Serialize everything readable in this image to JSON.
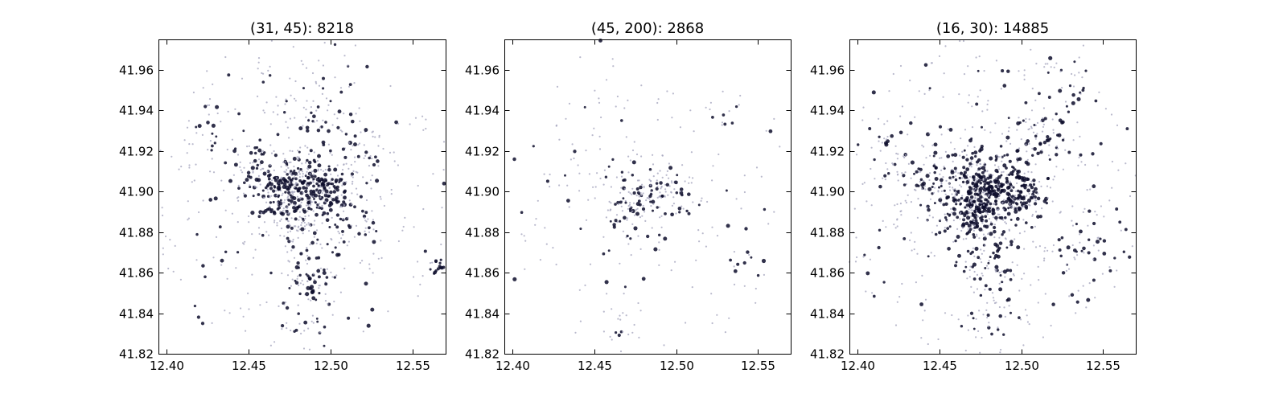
{
  "chart_data": [
    {
      "type": "scatter",
      "title": "(31, 45): 8218",
      "xlim": [
        12.395,
        12.57
      ],
      "ylim": [
        41.82,
        41.975
      ],
      "xticks": [
        "12.40",
        "12.45",
        "12.50",
        "12.55"
      ],
      "xtick_values": [
        12.4,
        12.45,
        12.5,
        12.55
      ],
      "yticks": [
        "41.82",
        "41.84",
        "41.86",
        "41.88",
        "41.90",
        "41.92",
        "41.94",
        "41.96"
      ],
      "ytick_values": [
        41.82,
        41.84,
        41.86,
        41.88,
        41.9,
        41.92,
        41.94,
        41.96
      ],
      "grid": false,
      "clusters": [
        {
          "center": [
            12.48,
            41.902
          ],
          "sx": 0.012,
          "sy": 0.008,
          "n": 260,
          "dark": 0.6
        },
        {
          "center": [
            12.5,
            41.9
          ],
          "sx": 0.006,
          "sy": 0.005,
          "n": 70,
          "dark": 0.7
        },
        {
          "center": [
            12.47,
            41.89
          ],
          "sx": 0.006,
          "sy": 0.006,
          "n": 50,
          "dark": 0.6
        },
        {
          "center": [
            12.485,
            41.87
          ],
          "sx": 0.01,
          "sy": 0.014,
          "n": 90,
          "dark": 0.4
        },
        {
          "center": [
            12.49,
            41.855
          ],
          "sx": 0.006,
          "sy": 0.005,
          "n": 30,
          "dark": 0.7
        },
        {
          "center": [
            12.455,
            41.91
          ],
          "sx": 0.008,
          "sy": 0.008,
          "n": 50,
          "dark": 0.5
        },
        {
          "center": [
            12.52,
            41.92
          ],
          "sx": 0.01,
          "sy": 0.01,
          "n": 40,
          "dark": 0.4
        },
        {
          "center": [
            12.48,
            41.945
          ],
          "sx": 0.012,
          "sy": 0.01,
          "n": 45,
          "dark": 0.3
        },
        {
          "center": [
            12.51,
            41.88
          ],
          "sx": 0.01,
          "sy": 0.008,
          "n": 45,
          "dark": 0.5
        },
        {
          "center": [
            12.565,
            41.863
          ],
          "sx": 0.004,
          "sy": 0.003,
          "n": 14,
          "dark": 0.8
        },
        {
          "center": [
            12.48,
            41.835
          ],
          "sx": 0.006,
          "sy": 0.004,
          "n": 14,
          "dark": 0.6
        },
        {
          "center": [
            12.5,
            41.94
          ],
          "sx": 0.008,
          "sy": 0.01,
          "n": 20,
          "dark": 0.6
        },
        {
          "center": [
            12.425,
            41.93
          ],
          "sx": 0.006,
          "sy": 0.006,
          "n": 16,
          "dark": 0.6
        }
      ],
      "background_points": 360
    },
    {
      "type": "scatter",
      "title": "(45, 200): 2868",
      "xlim": [
        12.395,
        12.57
      ],
      "ylim": [
        41.82,
        41.975
      ],
      "xticks": [
        "12.40",
        "12.45",
        "12.50",
        "12.55"
      ],
      "xtick_values": [
        12.4,
        12.45,
        12.5,
        12.55
      ],
      "yticks": [
        "41.82",
        "41.84",
        "41.86",
        "41.88",
        "41.90",
        "41.92",
        "41.94",
        "41.96"
      ],
      "ytick_values": [
        41.82,
        41.84,
        41.86,
        41.88,
        41.9,
        41.92,
        41.94,
        41.96
      ],
      "grid": false,
      "clusters": [
        {
          "center": [
            12.48,
            41.9
          ],
          "sx": 0.012,
          "sy": 0.008,
          "n": 110,
          "dark": 0.35
        },
        {
          "center": [
            12.5,
            41.9
          ],
          "sx": 0.006,
          "sy": 0.006,
          "n": 30,
          "dark": 0.4
        },
        {
          "center": [
            12.47,
            41.885
          ],
          "sx": 0.008,
          "sy": 0.008,
          "n": 30,
          "dark": 0.3
        },
        {
          "center": [
            12.465,
            41.835
          ],
          "sx": 0.006,
          "sy": 0.008,
          "n": 18,
          "dark": 0.3
        },
        {
          "center": [
            12.53,
            41.935
          ],
          "sx": 0.004,
          "sy": 0.003,
          "n": 8,
          "dark": 0.7
        },
        {
          "center": [
            12.545,
            41.862
          ],
          "sx": 0.008,
          "sy": 0.004,
          "n": 10,
          "dark": 0.4
        },
        {
          "center": [
            12.44,
            41.912
          ],
          "sx": 0.01,
          "sy": 0.01,
          "n": 20,
          "dark": 0.3
        }
      ],
      "background_points": 170
    },
    {
      "type": "scatter",
      "title": "(16, 30): 14885",
      "xlim": [
        12.395,
        12.57
      ],
      "ylim": [
        41.82,
        41.975
      ],
      "xticks": [
        "12.40",
        "12.45",
        "12.50",
        "12.55"
      ],
      "xtick_values": [
        12.4,
        12.45,
        12.5,
        12.55
      ],
      "yticks": [
        "41.82",
        "41.84",
        "41.86",
        "41.88",
        "41.90",
        "41.92",
        "41.94",
        "41.96"
      ],
      "ytick_values": [
        41.82,
        41.84,
        41.86,
        41.88,
        41.9,
        41.92,
        41.94,
        41.96
      ],
      "grid": false,
      "clusters": [
        {
          "center": [
            12.478,
            41.9
          ],
          "sx": 0.014,
          "sy": 0.01,
          "n": 420,
          "dark": 0.7
        },
        {
          "center": [
            12.47,
            41.89
          ],
          "sx": 0.006,
          "sy": 0.006,
          "n": 70,
          "dark": 0.7
        },
        {
          "center": [
            12.5,
            41.9
          ],
          "sx": 0.008,
          "sy": 0.006,
          "n": 80,
          "dark": 0.7
        },
        {
          "center": [
            12.51,
            41.925
          ],
          "sx": 0.01,
          "sy": 0.01,
          "n": 70,
          "dark": 0.6
        },
        {
          "center": [
            12.48,
            41.87
          ],
          "sx": 0.012,
          "sy": 0.015,
          "n": 110,
          "dark": 0.45
        },
        {
          "center": [
            12.445,
            41.905
          ],
          "sx": 0.012,
          "sy": 0.01,
          "n": 70,
          "dark": 0.5
        },
        {
          "center": [
            12.42,
            41.92
          ],
          "sx": 0.008,
          "sy": 0.01,
          "n": 30,
          "dark": 0.55
        },
        {
          "center": [
            12.53,
            41.955
          ],
          "sx": 0.01,
          "sy": 0.012,
          "n": 30,
          "dark": 0.5
        },
        {
          "center": [
            12.54,
            41.87
          ],
          "sx": 0.012,
          "sy": 0.01,
          "n": 40,
          "dark": 0.5
        },
        {
          "center": [
            12.48,
            41.84
          ],
          "sx": 0.01,
          "sy": 0.01,
          "n": 30,
          "dark": 0.5
        }
      ],
      "background_points": 420
    }
  ],
  "colors": {
    "point_dark": "#0d0d2b",
    "point_light": "#a8a8bf",
    "frame": "#000000",
    "background": "#ffffff"
  }
}
